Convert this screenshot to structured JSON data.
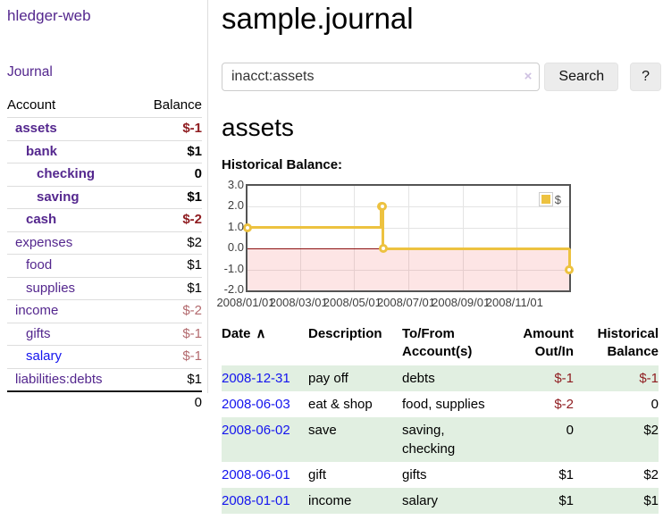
{
  "colors": {
    "link_purple": "#54278e",
    "link_blue": "#1414ee",
    "negative_strong": "#8f1d21",
    "negative_soft": "#b36a6e",
    "row_stripe_green": "#e1efe1",
    "chart_series_gold": "#edc240",
    "chart_zero_line": "#8c1010",
    "button_gray": "#ececec"
  },
  "app": {
    "title": "hledger-web"
  },
  "sidebar": {
    "journal_label": "Journal",
    "accounts_table": {
      "headers": [
        "Account",
        "Balance"
      ],
      "rows": [
        {
          "account": "assets",
          "balance": "$-1",
          "indent": 1,
          "bold": true,
          "link": "purple",
          "bal": "neg-strong"
        },
        {
          "account": "bank",
          "balance": "$1",
          "indent": 2,
          "bold": true,
          "link": "purple",
          "bal": "pos"
        },
        {
          "account": "checking",
          "balance": "0",
          "indent": 3,
          "bold": true,
          "link": "purple",
          "bal": "pos"
        },
        {
          "account": "saving",
          "balance": "$1",
          "indent": 3,
          "bold": true,
          "link": "purple",
          "bal": "pos"
        },
        {
          "account": "cash",
          "balance": "$-2",
          "indent": 2,
          "bold": true,
          "link": "purple",
          "bal": "neg-strong"
        },
        {
          "account": "expenses",
          "balance": "$2",
          "indent": 1,
          "bold": false,
          "link": "purple",
          "bal": "pos"
        },
        {
          "account": "food",
          "balance": "$1",
          "indent": 2,
          "bold": false,
          "link": "purple",
          "bal": "pos"
        },
        {
          "account": "supplies",
          "balance": "$1",
          "indent": 2,
          "bold": false,
          "link": "purple",
          "bal": "pos"
        },
        {
          "account": "income",
          "balance": "$-2",
          "indent": 1,
          "bold": false,
          "link": "purple",
          "bal": "neg-soft"
        },
        {
          "account": "gifts",
          "balance": "$-1",
          "indent": 2,
          "bold": false,
          "link": "purple",
          "bal": "neg-soft"
        },
        {
          "account": "salary",
          "balance": "$-1",
          "indent": 2,
          "bold": false,
          "link": "blue",
          "bal": "neg-soft"
        },
        {
          "account": "liabilities:debts",
          "balance": "$1",
          "indent": 1,
          "bold": false,
          "link": "purple",
          "bal": "pos"
        }
      ],
      "total": "0"
    }
  },
  "main": {
    "title": "sample.journal",
    "search": {
      "value": "inacct:assets",
      "clear_icon": "×",
      "button_label": "Search",
      "help_label": "?"
    },
    "account_heading": "assets",
    "chart_label": "Historical Balance:",
    "register": {
      "headers": {
        "date": "Date",
        "sort_icon": "∧",
        "description": "Description",
        "accounts_lines": [
          "To/From",
          "Account(s)"
        ],
        "amount_lines": [
          "Amount",
          "Out/In"
        ],
        "balance_lines": [
          "Historical",
          "Balance"
        ]
      },
      "rows": [
        {
          "date": "2008-12-31",
          "description": "pay off",
          "accounts": "debts",
          "amount": "$-1",
          "amount_negative": true,
          "balance": "$-1",
          "balance_negative": true,
          "shade": true
        },
        {
          "date": "2008-06-03",
          "description": "eat & shop",
          "accounts": "food, supplies",
          "amount": "$-2",
          "amount_negative": true,
          "balance": "0",
          "balance_negative": false,
          "shade": false
        },
        {
          "date": "2008-06-02",
          "description": "save",
          "accounts": "saving, checking",
          "amount": "0",
          "amount_negative": false,
          "balance": "$2",
          "balance_negative": false,
          "shade": true
        },
        {
          "date": "2008-06-01",
          "description": "gift",
          "accounts": "gifts",
          "amount": "$1",
          "amount_negative": false,
          "balance": "$2",
          "balance_negative": false,
          "shade": false
        },
        {
          "date": "2008-01-01",
          "description": "income",
          "accounts": "salary",
          "amount": "$1",
          "amount_negative": false,
          "balance": "$1",
          "balance_negative": false,
          "shade": true
        }
      ]
    }
  },
  "chart_data": {
    "type": "line",
    "title": "Historical Balance:",
    "step": true,
    "negative_region_shaded": true,
    "legend": {
      "position": "top-right",
      "label": "$"
    },
    "ylim": [
      -2,
      3
    ],
    "xlim_days": [
      0,
      365
    ],
    "y_ticks": [
      {
        "label": "3.0",
        "value": 3
      },
      {
        "label": "2.0",
        "value": 2
      },
      {
        "label": "1.0",
        "value": 1
      },
      {
        "label": "0.0",
        "value": 0
      },
      {
        "label": "-1.0",
        "value": -1
      },
      {
        "label": "-2.0",
        "value": -2
      }
    ],
    "x_ticks": [
      {
        "label": "2008/01/01",
        "day": 0
      },
      {
        "label": "2008/03/01",
        "day": 60
      },
      {
        "label": "2008/05/01",
        "day": 121
      },
      {
        "label": "2008/07/01",
        "day": 182
      },
      {
        "label": "2008/09/01",
        "day": 244
      },
      {
        "label": "2008/11/01",
        "day": 305
      }
    ],
    "series": [
      {
        "name": "$",
        "color": "#edc240",
        "points": [
          {
            "date": "2008-01-01",
            "day": 0,
            "value": 1
          },
          {
            "date": "2008-06-01",
            "day": 152,
            "value": 2
          },
          {
            "date": "2008-06-02",
            "day": 153,
            "value": 2
          },
          {
            "date": "2008-06-03",
            "day": 154,
            "value": 0
          },
          {
            "date": "2008-12-31",
            "day": 365,
            "value": -1
          }
        ]
      }
    ]
  }
}
